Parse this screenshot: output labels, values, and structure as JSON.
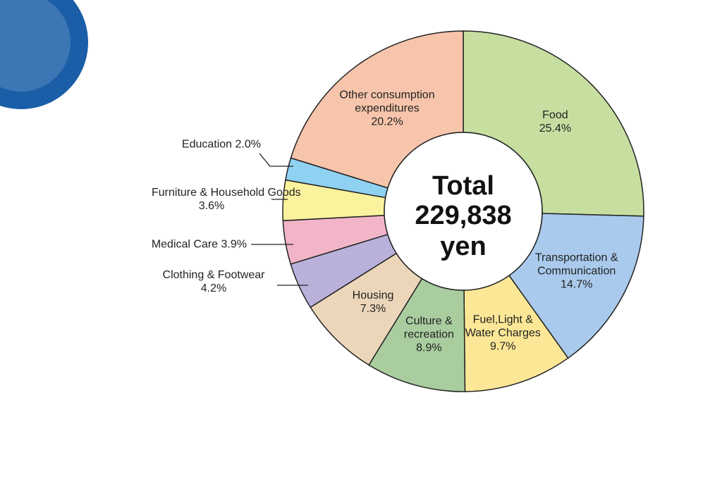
{
  "chart_data": {
    "type": "donut",
    "total": {
      "title": "Total",
      "value": 229838,
      "value_label": "229,838",
      "unit": "yen"
    },
    "categories": [
      "Food",
      "Transportation & Communication",
      "Fuel,Light & Water Charges",
      "Culture & recreation",
      "Housing",
      "Clothing & Footwear",
      "Medical Care",
      "Furniture & Household Goods",
      "Education",
      "Other consumption expenditures"
    ],
    "values": [
      25.4,
      14.7,
      9.7,
      8.9,
      7.3,
      4.2,
      3.9,
      3.6,
      2.0,
      20.2
    ],
    "value_labels": [
      "25.4%",
      "14.7%",
      "9.7%",
      "8.9%",
      "7.3%",
      "4.2%",
      "3.9%",
      "3.6%",
      "2.0%",
      "20.2%"
    ],
    "colors": [
      "#c6dea0",
      "#a9caec",
      "#fbe796",
      "#a9cd9f",
      "#ecd6b9",
      "#b9b1da",
      "#f2b5c8",
      "#fbf29e",
      "#8fd1f1",
      "#f7c5ab"
    ]
  }
}
